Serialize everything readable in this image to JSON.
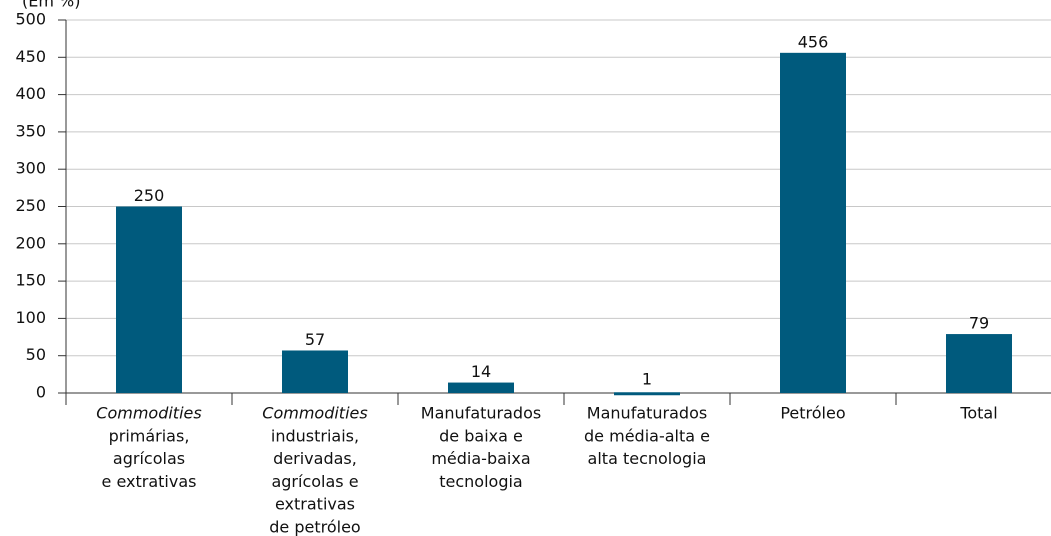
{
  "chart_data": {
    "type": "bar",
    "y_label": "(Em %)",
    "categories": [
      [
        "Commodities",
        "primárias,",
        "agrícolas",
        "e extrativas"
      ],
      [
        "Commodities",
        "industriais,",
        "derivadas,",
        "agrícolas e",
        "extrativas",
        "de petróleo"
      ],
      [
        "Manufaturados",
        "de baixa e",
        "média-baixa",
        "tecnologia"
      ],
      [
        "Manufaturados",
        "de média-alta e",
        "alta tecnologia"
      ],
      [
        "Petróleo"
      ],
      [
        "Total"
      ]
    ],
    "values": [
      250,
      57,
      14,
      1,
      456,
      79
    ],
    "color": "#005a7d",
    "ylim": [
      0,
      500
    ],
    "yticks": [
      0,
      50,
      100,
      150,
      200,
      250,
      300,
      350,
      400,
      450,
      500
    ],
    "grid": true
  }
}
